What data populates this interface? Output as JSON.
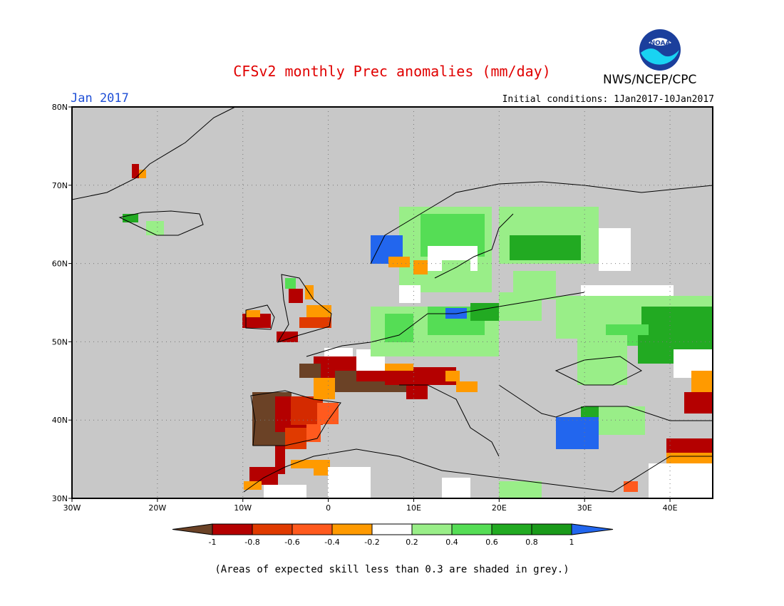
{
  "title": "CFSv2 monthly Prec anomalies (mm/day)",
  "month": "Jan 2017",
  "initial_conditions": "Initial conditions: 1Jan2017-10Jan2017",
  "agency": "NWS/NCEP/CPC",
  "logo_text": "NOAA",
  "footnote": "(Areas of expected skill less than 0.3 are shaded in grey.)",
  "colors": {
    "title": "#e00000",
    "month": "#1f4fd6",
    "land_grey": "#c8c8c8",
    "frame": "#000000"
  },
  "map": {
    "lat_labels": [
      "80N",
      "70N",
      "60N",
      "50N",
      "40N",
      "30N"
    ],
    "lon_labels": [
      "30W",
      "20W",
      "10W",
      "0",
      "10E",
      "20E",
      "30E",
      "40E"
    ],
    "lat_range": [
      30,
      80
    ],
    "lon_range": [
      -30,
      45
    ]
  },
  "colorbar": {
    "labels": [
      "-1",
      "-0.8",
      "-0.6",
      "-0.4",
      "-0.2",
      "0.2",
      "0.4",
      "0.6",
      "0.8",
      "1"
    ],
    "colors": [
      "#6b4226",
      "#b40000",
      "#e03a00",
      "#ff5a1e",
      "#ff9a00",
      "#ffffff",
      "#99ee88",
      "#55dd55",
      "#22aa22",
      "#1a9a1a",
      "#2266ee"
    ]
  },
  "anomaly_regions": [
    {
      "name": "iberia-west-dry",
      "value": -1.0
    },
    {
      "name": "iberia-dry",
      "value": -0.8
    },
    {
      "name": "southern-france-dry",
      "value": -0.8
    },
    {
      "name": "northern-italy-dry",
      "value": -0.8
    },
    {
      "name": "ireland-dry",
      "value": -0.8
    },
    {
      "name": "england-dry",
      "value": -0.6
    },
    {
      "name": "morocco-dry",
      "value": -0.8
    },
    {
      "name": "central-europe-wet",
      "value": 0.4
    },
    {
      "name": "scandinavia-wet",
      "value": 0.6
    },
    {
      "name": "norway-coast-wet",
      "value": 1.0
    },
    {
      "name": "russia-wet",
      "value": 0.8
    },
    {
      "name": "turkey-wet",
      "value": 1.0
    }
  ]
}
